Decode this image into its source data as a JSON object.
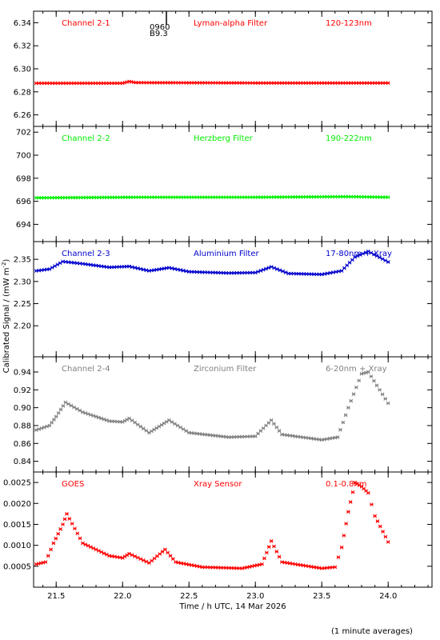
{
  "figure": {
    "ylabel_text": "Calibrated Signal / (mW m",
    "ylabel_sup": "-2",
    "ylabel_close": ")",
    "xlabel": "Time / h UTC, 14 Mar 2026",
    "footnote": "(1 minute averages)",
    "annotation_lines": [
      "0960",
      "B9.3"
    ]
  },
  "chart_data": [
    {
      "type": "scatter",
      "labels": [
        "Channel 2-1",
        "Lyman-alpha Filter",
        "120-123nm"
      ],
      "color": "#ff0000",
      "ylim": [
        6.25,
        6.35
      ],
      "yticks": [
        6.26,
        6.28,
        6.3,
        6.32,
        6.34
      ],
      "ytick_labels": [
        "6.26",
        "6.28",
        "6.30",
        "6.32",
        "6.34"
      ],
      "xlim": [
        21.33,
        24.33
      ],
      "series": [
        {
          "x": [
            21.35,
            22.0,
            22.05,
            22.1,
            23.0,
            24.0
          ],
          "y": [
            6.2875,
            6.2875,
            6.289,
            6.288,
            6.2877,
            6.2877
          ]
        }
      ]
    },
    {
      "type": "scatter",
      "labels": [
        "Channel 2-2",
        "Herzberg Filter",
        "190-222nm"
      ],
      "color": "#00ee00",
      "ylim": [
        692.5,
        702.5
      ],
      "yticks": [
        694,
        696,
        698,
        700,
        702
      ],
      "ytick_labels": [
        "694",
        "696",
        "698",
        "700",
        "702"
      ],
      "xlim": [
        21.33,
        24.33
      ],
      "series": [
        {
          "x": [
            21.35,
            22.1,
            23.0,
            23.7,
            24.0
          ],
          "y": [
            696.3,
            696.35,
            696.35,
            696.4,
            696.35
          ]
        }
      ]
    },
    {
      "type": "scatter",
      "labels": [
        "Channel 2-3",
        "Aluminium Filter",
        "17-80nm + Xray"
      ],
      "color": "#0000cc",
      "ylim": [
        2.13,
        2.39
      ],
      "yticks": [
        2.2,
        2.25,
        2.3,
        2.35
      ],
      "ytick_labels": [
        "2.20",
        "2.25",
        "2.30",
        "2.35"
      ],
      "xlim": [
        21.33,
        24.33
      ],
      "series": [
        {
          "x": [
            21.35,
            21.45,
            21.55,
            21.7,
            21.9,
            22.05,
            22.2,
            22.35,
            22.5,
            22.8,
            23.0,
            23.12,
            23.25,
            23.5,
            23.65,
            23.75,
            23.85,
            24.0
          ],
          "y": [
            2.324,
            2.328,
            2.345,
            2.34,
            2.332,
            2.334,
            2.324,
            2.331,
            2.322,
            2.319,
            2.32,
            2.333,
            2.318,
            2.316,
            2.324,
            2.355,
            2.368,
            2.344
          ]
        }
      ]
    },
    {
      "type": "scatter",
      "labels": [
        "Channel 2-4",
        "Zirconium Filter",
        "6-20nm + Xray"
      ],
      "color": "#808080",
      "ylim": [
        0.828,
        0.957
      ],
      "yticks": [
        0.84,
        0.86,
        0.88,
        0.9,
        0.92,
        0.94
      ],
      "ytick_labels": [
        "0.84",
        "0.86",
        "0.88",
        "0.90",
        "0.92",
        "0.94"
      ],
      "xlim": [
        21.33,
        24.33
      ],
      "series": [
        {
          "x": [
            21.35,
            21.45,
            21.5,
            21.57,
            21.7,
            21.9,
            22.0,
            22.05,
            22.2,
            22.35,
            22.5,
            22.8,
            23.0,
            23.12,
            23.2,
            23.5,
            23.62,
            23.7,
            23.8,
            23.85,
            24.0
          ],
          "y": [
            0.875,
            0.88,
            0.89,
            0.906,
            0.895,
            0.885,
            0.884,
            0.888,
            0.872,
            0.886,
            0.872,
            0.867,
            0.868,
            0.886,
            0.87,
            0.864,
            0.867,
            0.9,
            0.938,
            0.94,
            0.905
          ]
        }
      ]
    },
    {
      "type": "scatter",
      "labels": [
        "GOES",
        "Xray Sensor",
        "0.1-0.8nm"
      ],
      "color": "#ff0000",
      "ylim": [
        0.0,
        0.00275
      ],
      "yticks": [
        0.0005,
        0.001,
        0.0015,
        0.002,
        0.0025
      ],
      "ytick_labels": [
        "0.0005",
        "0.0010",
        "0.0015",
        "0.0020",
        "0.0025"
      ],
      "xlim": [
        21.33,
        24.33
      ],
      "series": [
        {
          "x": [
            21.35,
            21.42,
            21.48,
            21.55,
            21.58,
            21.7,
            21.9,
            22.0,
            22.05,
            22.2,
            22.32,
            22.4,
            22.6,
            22.9,
            23.05,
            23.12,
            23.2,
            23.5,
            23.6,
            23.65,
            23.7,
            23.75,
            23.8,
            23.85,
            23.9,
            24.0
          ],
          "y": [
            0.00055,
            0.0006,
            0.00105,
            0.0015,
            0.00175,
            0.00105,
            0.00075,
            0.0007,
            0.0008,
            0.00058,
            0.0009,
            0.0006,
            0.00048,
            0.00045,
            0.00055,
            0.0011,
            0.0006,
            0.00045,
            0.00048,
            0.00095,
            0.0018,
            0.0025,
            0.0024,
            0.00225,
            0.0017,
            0.00108
          ]
        }
      ]
    }
  ],
  "x_axis": {
    "ticks": [
      21.5,
      22.0,
      22.5,
      23.0,
      23.5,
      24.0
    ],
    "tick_labels": [
      "21.5",
      "22.0",
      "22.5",
      "23.0",
      "23.5",
      "24.0"
    ],
    "minor_step": 0.1
  }
}
